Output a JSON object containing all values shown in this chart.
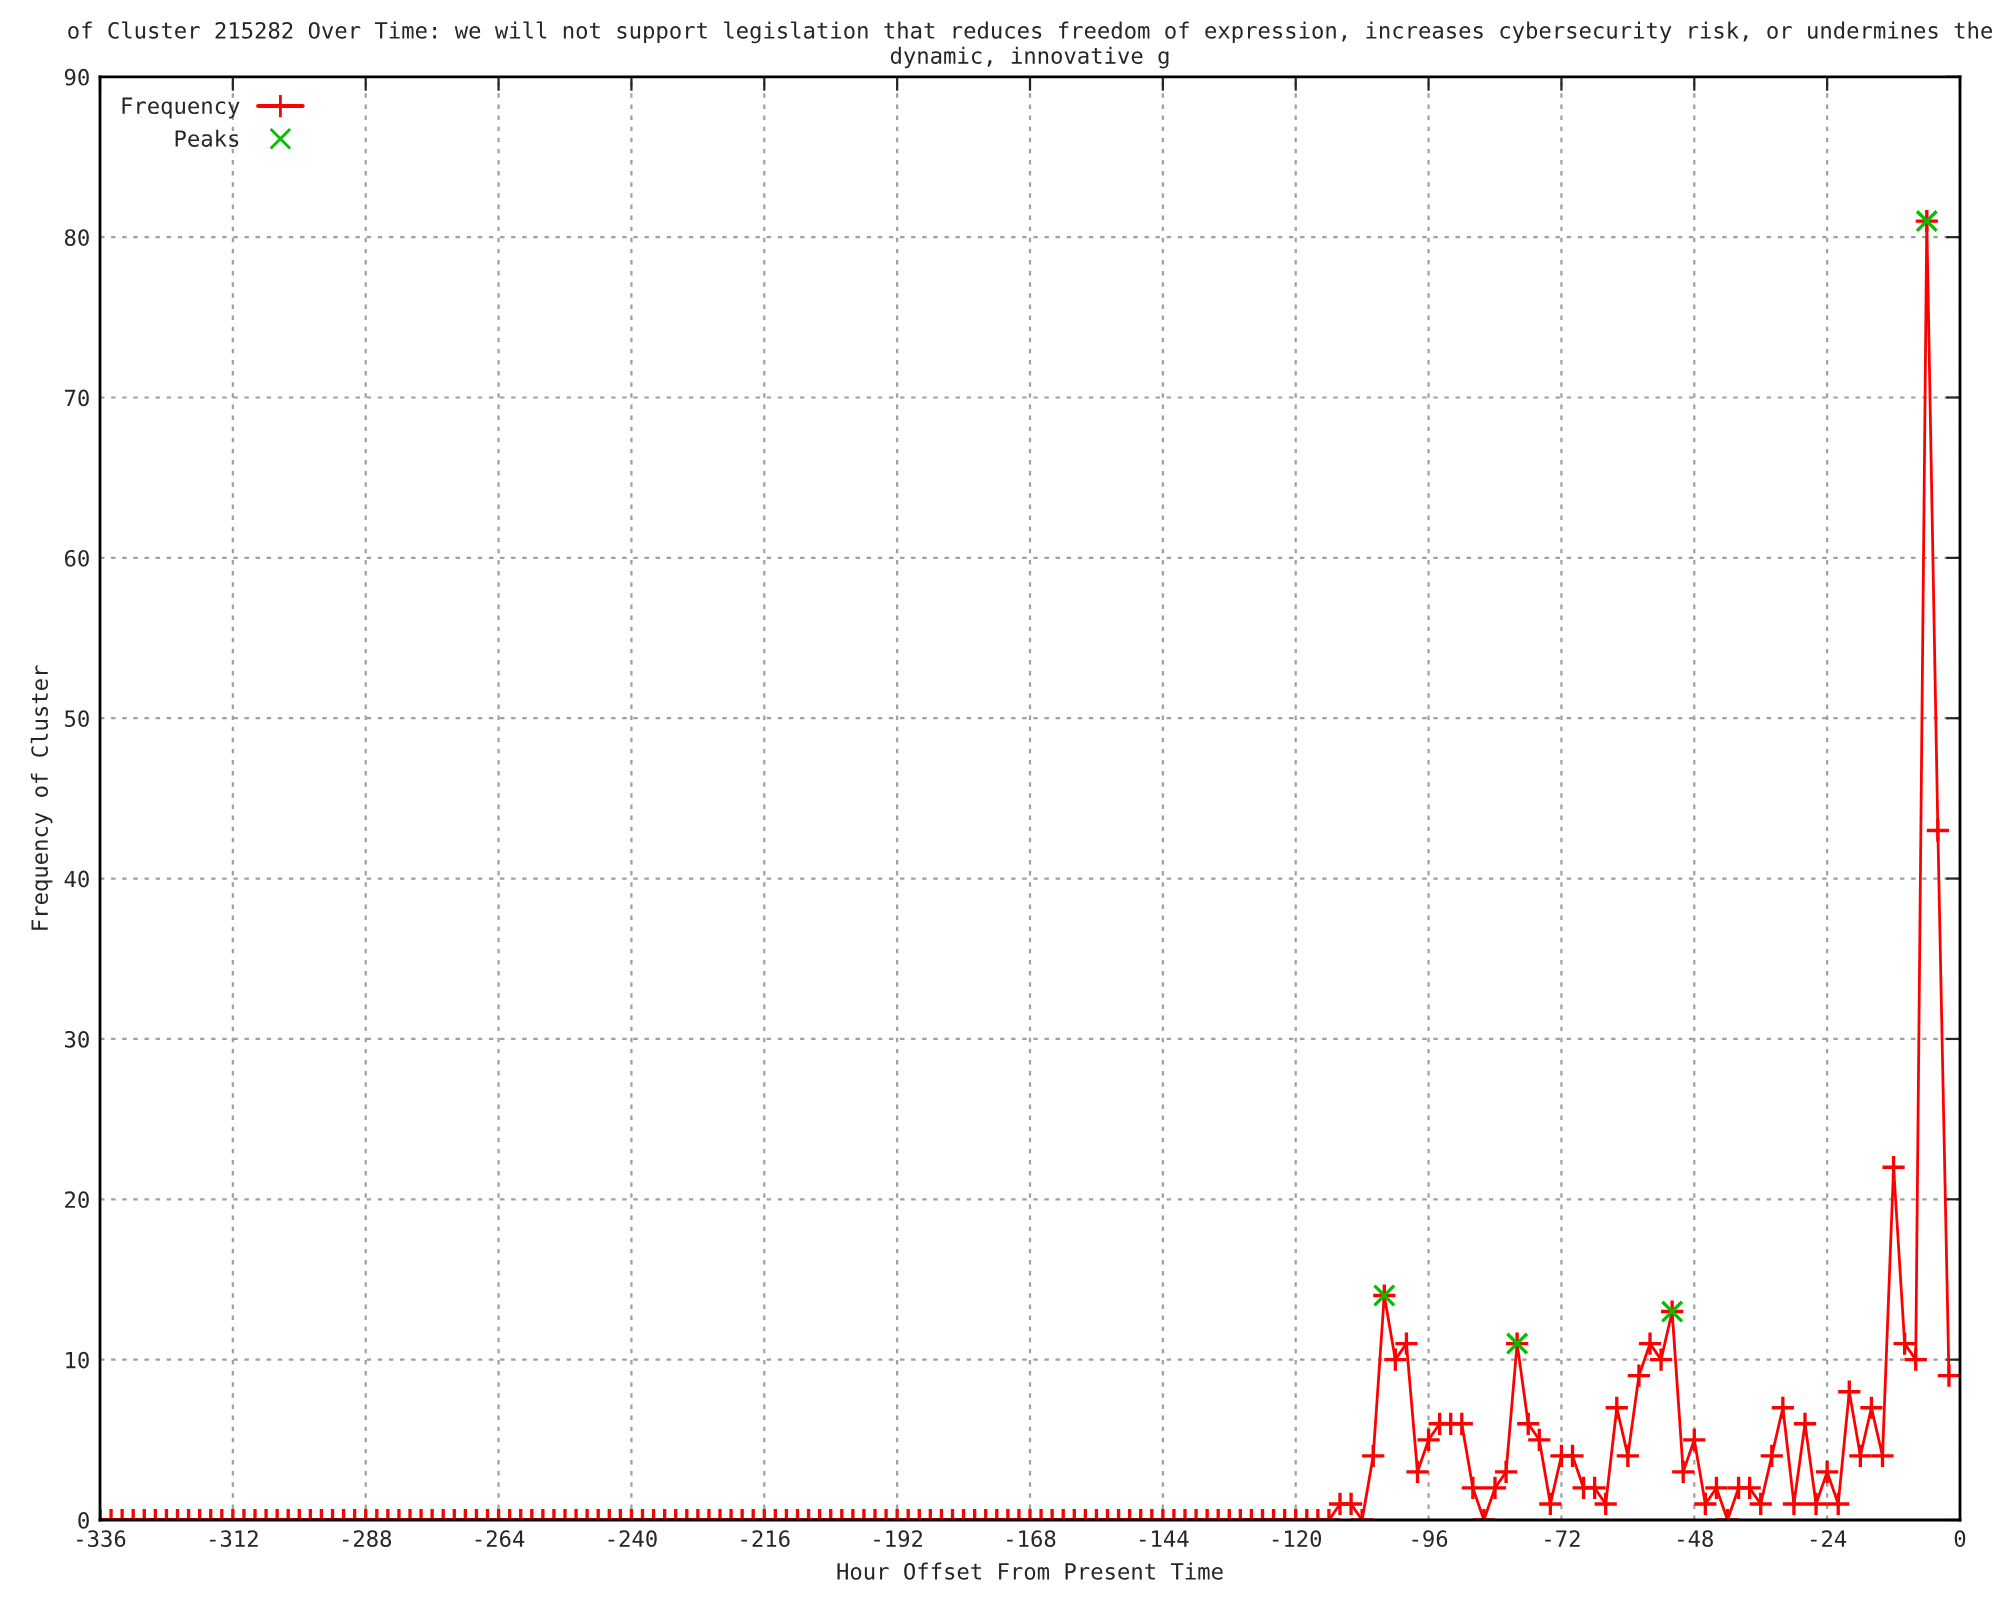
{
  "chart_data": {
    "type": "line",
    "title": "of Cluster 215282 Over Time: we will not support legislation that reduces freedom of expression, increases cybersecurity risk, or undermines the dynamic, innovative g",
    "xlabel": "Hour Offset From Present Time",
    "ylabel": "Frequency of Cluster",
    "xlim": [
      -336,
      0
    ],
    "xticks": [
      -336,
      -312,
      -288,
      -264,
      -240,
      -216,
      -192,
      -168,
      -144,
      -120,
      -96,
      -72,
      -48,
      -24,
      0
    ],
    "ylim": [
      0,
      90
    ],
    "yticks": [
      0,
      10,
      20,
      30,
      40,
      50,
      60,
      70,
      80,
      90
    ],
    "grid": true,
    "legend": "top left",
    "series": [
      {
        "name": "Frequency",
        "type": "line",
        "color": "#ff0000",
        "marker": "cross",
        "line_style": "solid",
        "x": [
          -336,
          -334,
          -332,
          -330,
          -328,
          -326,
          -324,
          -322,
          -320,
          -318,
          -316,
          -314,
          -312,
          -310,
          -308,
          -306,
          -304,
          -302,
          -300,
          -298,
          -296,
          -294,
          -292,
          -290,
          -288,
          -286,
          -284,
          -282,
          -280,
          -278,
          -276,
          -274,
          -272,
          -270,
          -268,
          -266,
          -264,
          -262,
          -260,
          -258,
          -256,
          -254,
          -252,
          -250,
          -248,
          -246,
          -244,
          -242,
          -240,
          -238,
          -236,
          -234,
          -232,
          -230,
          -228,
          -226,
          -224,
          -222,
          -220,
          -218,
          -216,
          -214,
          -212,
          -210,
          -208,
          -206,
          -204,
          -202,
          -200,
          -198,
          -196,
          -194,
          -192,
          -190,
          -188,
          -186,
          -184,
          -182,
          -180,
          -178,
          -176,
          -174,
          -172,
          -170,
          -168,
          -166,
          -164,
          -162,
          -160,
          -158,
          -156,
          -154,
          -152,
          -150,
          -148,
          -146,
          -144,
          -142,
          -140,
          -138,
          -136,
          -134,
          -132,
          -130,
          -128,
          -126,
          -124,
          -122,
          -120,
          -118,
          -116,
          -114,
          -112,
          -110,
          -108,
          -106,
          -104,
          -102,
          -100,
          -98,
          -96,
          -94,
          -92,
          -90,
          -88,
          -86,
          -84,
          -82,
          -80,
          -78,
          -76,
          -74,
          -72,
          -70,
          -68,
          -66,
          -64,
          -62,
          -60,
          -58,
          -56,
          -54,
          -52,
          -50,
          -48,
          -46,
          -44,
          -42,
          -40,
          -38,
          -36,
          -34,
          -32,
          -30,
          -28,
          -26,
          -24,
          -22,
          -20,
          -18,
          -16,
          -14,
          -12,
          -10,
          -8,
          -6,
          -4,
          -2
        ],
        "values": [
          0,
          0,
          0,
          0,
          0,
          0,
          0,
          0,
          0,
          0,
          0,
          0,
          0,
          0,
          0,
          0,
          0,
          0,
          0,
          0,
          0,
          0,
          0,
          0,
          0,
          0,
          0,
          0,
          0,
          0,
          0,
          0,
          0,
          0,
          0,
          0,
          0,
          0,
          0,
          0,
          0,
          0,
          0,
          0,
          0,
          0,
          0,
          0,
          0,
          0,
          0,
          0,
          0,
          0,
          0,
          0,
          0,
          0,
          0,
          0,
          0,
          0,
          0,
          0,
          0,
          0,
          0,
          0,
          0,
          0,
          0,
          0,
          0,
          0,
          0,
          0,
          0,
          0,
          0,
          0,
          0,
          0,
          0,
          0,
          0,
          0,
          0,
          0,
          0,
          0,
          0,
          0,
          0,
          0,
          0,
          0,
          0,
          0,
          0,
          0,
          0,
          0,
          0,
          0,
          0,
          0,
          0,
          0,
          0,
          0,
          0,
          0,
          1,
          1,
          0,
          4,
          14,
          10,
          11,
          3,
          5,
          6,
          6,
          6,
          2,
          0,
          2,
          3,
          11,
          6,
          5,
          1,
          4,
          4,
          2,
          2,
          1,
          7,
          4,
          9,
          11,
          10,
          13,
          3,
          5,
          1,
          2,
          0,
          2,
          2,
          1,
          4,
          7,
          1,
          6,
          1,
          3,
          1,
          8,
          4,
          7,
          4,
          22,
          11,
          10,
          81,
          43,
          9
        ]
      },
      {
        "name": "Peaks",
        "type": "scatter",
        "color": "#00c000",
        "marker": "cross",
        "x": [
          -104,
          -80,
          -52,
          -6
        ],
        "values": [
          14,
          11,
          13,
          81
        ]
      }
    ]
  }
}
